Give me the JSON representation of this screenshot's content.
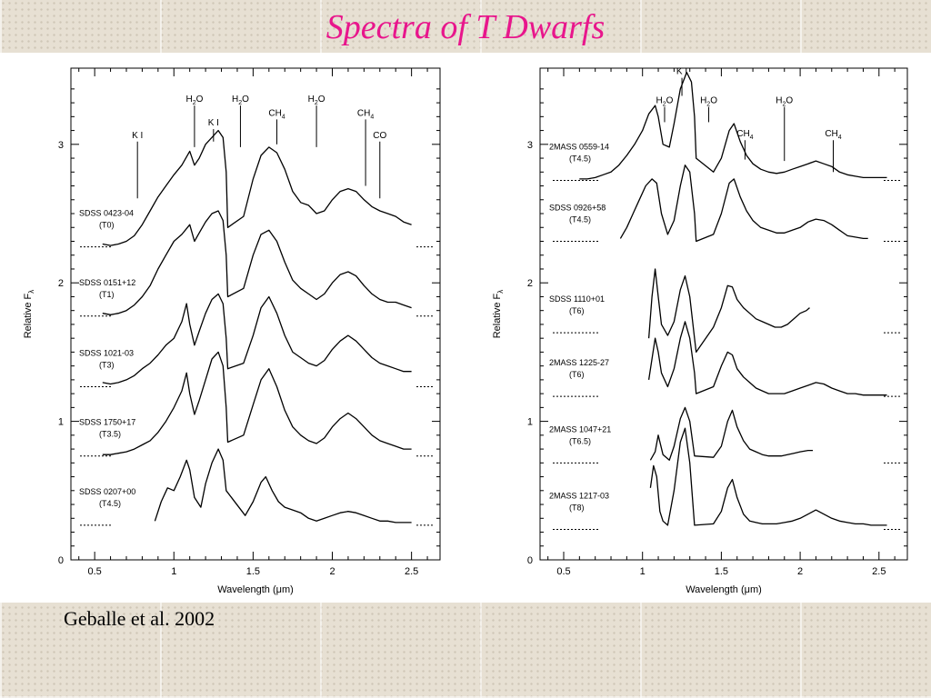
{
  "slide": {
    "title": "Spectra of T Dwarfs",
    "citation": "Geballe et al. 2002"
  },
  "chart_data": [
    {
      "type": "line",
      "xlabel": "Wavelength (μm)",
      "ylabel": "Relative F_λ",
      "xlim": [
        0.35,
        2.68
      ],
      "ylim": [
        0,
        3.55
      ],
      "xticks": [
        "0.5",
        "1",
        "1.5",
        "2",
        "2.5"
      ],
      "xtick_values": [
        0.5,
        1,
        1.5,
        2,
        2.5
      ],
      "yticks": [
        "0",
        "1",
        "2",
        "3"
      ],
      "ytick_values": [
        0,
        1,
        2,
        3
      ],
      "feature_labels": [
        {
          "text": "K I",
          "x": 0.77,
          "top": 3.02,
          "bottom": 2.61
        },
        {
          "text": "H2O",
          "x": 1.13,
          "top": 3.28,
          "bottom": 2.98
        },
        {
          "text": "K I",
          "x": 1.25,
          "top": 3.11,
          "bottom": 3.02
        },
        {
          "text": "H2O",
          "x": 1.42,
          "top": 3.28,
          "bottom": 2.98
        },
        {
          "text": "CH4",
          "x": 1.65,
          "top": 3.18,
          "bottom": 3.0
        },
        {
          "text": "H2O",
          "x": 1.9,
          "top": 3.28,
          "bottom": 2.98
        },
        {
          "text": "CH4",
          "x": 2.21,
          "top": 3.18,
          "bottom": 2.7
        },
        {
          "text": "CO",
          "x": 2.3,
          "top": 3.02,
          "bottom": 2.61
        }
      ],
      "series": [
        {
          "name": "SDSS 0423-04",
          "type": "(T0)",
          "zero": 2.26,
          "x": [
            0.55,
            0.6,
            0.65,
            0.7,
            0.75,
            0.8,
            0.85,
            0.9,
            0.95,
            1.0,
            1.05,
            1.1,
            1.13,
            1.16,
            1.2,
            1.24,
            1.28,
            1.31,
            1.33,
            1.34,
            1.44,
            1.5,
            1.55,
            1.6,
            1.65,
            1.7,
            1.75,
            1.8,
            1.85,
            1.9,
            1.95,
            2.0,
            2.05,
            2.1,
            2.15,
            2.2,
            2.25,
            2.3,
            2.35,
            2.4,
            2.45,
            2.5
          ],
          "y": [
            2.28,
            2.27,
            2.28,
            2.3,
            2.34,
            2.42,
            2.52,
            2.62,
            2.7,
            2.78,
            2.85,
            2.95,
            2.85,
            2.9,
            3.0,
            3.05,
            3.1,
            3.05,
            2.8,
            2.4,
            2.48,
            2.75,
            2.92,
            2.98,
            2.94,
            2.82,
            2.66,
            2.58,
            2.56,
            2.5,
            2.52,
            2.6,
            2.66,
            2.68,
            2.66,
            2.6,
            2.55,
            2.52,
            2.5,
            2.48,
            2.44,
            2.42
          ]
        },
        {
          "name": "SDSS 0151+12",
          "type": "(T1)",
          "zero": 1.76,
          "x": [
            0.55,
            0.6,
            0.65,
            0.7,
            0.75,
            0.8,
            0.85,
            0.9,
            0.95,
            1.0,
            1.05,
            1.1,
            1.13,
            1.16,
            1.2,
            1.24,
            1.28,
            1.31,
            1.33,
            1.34,
            1.44,
            1.5,
            1.55,
            1.6,
            1.65,
            1.7,
            1.75,
            1.8,
            1.85,
            1.9,
            1.95,
            2.0,
            2.05,
            2.1,
            2.15,
            2.2,
            2.25,
            2.3,
            2.35,
            2.4,
            2.45,
            2.5
          ],
          "y": [
            1.78,
            1.77,
            1.78,
            1.8,
            1.84,
            1.9,
            1.98,
            2.1,
            2.2,
            2.3,
            2.35,
            2.42,
            2.3,
            2.36,
            2.44,
            2.5,
            2.52,
            2.45,
            2.2,
            1.9,
            1.96,
            2.2,
            2.35,
            2.38,
            2.3,
            2.15,
            2.02,
            1.96,
            1.92,
            1.88,
            1.92,
            2.0,
            2.06,
            2.08,
            2.05,
            1.98,
            1.92,
            1.88,
            1.86,
            1.86,
            1.84,
            1.82
          ]
        },
        {
          "name": "SDSS 1021-03",
          "type": "(T3)",
          "zero": 1.25,
          "x": [
            0.55,
            0.6,
            0.65,
            0.7,
            0.75,
            0.8,
            0.85,
            0.9,
            0.95,
            1.0,
            1.05,
            1.08,
            1.1,
            1.13,
            1.16,
            1.2,
            1.24,
            1.28,
            1.31,
            1.33,
            1.34,
            1.44,
            1.5,
            1.55,
            1.6,
            1.65,
            1.7,
            1.75,
            1.8,
            1.85,
            1.9,
            1.95,
            2.0,
            2.05,
            2.1,
            2.15,
            2.2,
            2.25,
            2.3,
            2.35,
            2.4,
            2.45,
            2.5
          ],
          "y": [
            1.28,
            1.27,
            1.28,
            1.3,
            1.33,
            1.38,
            1.42,
            1.48,
            1.55,
            1.6,
            1.72,
            1.85,
            1.7,
            1.55,
            1.65,
            1.78,
            1.88,
            1.92,
            1.85,
            1.6,
            1.38,
            1.42,
            1.62,
            1.82,
            1.9,
            1.78,
            1.62,
            1.5,
            1.46,
            1.42,
            1.4,
            1.44,
            1.52,
            1.58,
            1.62,
            1.58,
            1.52,
            1.46,
            1.42,
            1.4,
            1.38,
            1.36,
            1.36
          ]
        },
        {
          "name": "SDSS 1750+17",
          "type": "(T3.5)",
          "zero": 0.75,
          "x": [
            0.55,
            0.6,
            0.65,
            0.7,
            0.75,
            0.8,
            0.85,
            0.9,
            0.95,
            1.0,
            1.05,
            1.08,
            1.1,
            1.13,
            1.16,
            1.2,
            1.24,
            1.28,
            1.31,
            1.33,
            1.34,
            1.44,
            1.5,
            1.55,
            1.6,
            1.65,
            1.7,
            1.75,
            1.8,
            1.85,
            1.9,
            1.95,
            2.0,
            2.05,
            2.1,
            2.15,
            2.2,
            2.25,
            2.3,
            2.35,
            2.4,
            2.45,
            2.5
          ],
          "y": [
            0.76,
            0.76,
            0.77,
            0.78,
            0.8,
            0.83,
            0.86,
            0.92,
            1.0,
            1.1,
            1.22,
            1.35,
            1.2,
            1.05,
            1.15,
            1.3,
            1.45,
            1.5,
            1.4,
            1.1,
            0.85,
            0.9,
            1.12,
            1.3,
            1.38,
            1.25,
            1.08,
            0.96,
            0.9,
            0.86,
            0.84,
            0.88,
            0.96,
            1.02,
            1.06,
            1.02,
            0.96,
            0.9,
            0.86,
            0.84,
            0.82,
            0.8,
            0.8
          ]
        },
        {
          "name": "SDSS 0207+00",
          "type": "(T4.5)",
          "zero": 0.25,
          "x": [
            0.88,
            0.92,
            0.96,
            1.0,
            1.04,
            1.08,
            1.1,
            1.13,
            1.17,
            1.2,
            1.24,
            1.28,
            1.31,
            1.33,
            1.45,
            1.5,
            1.55,
            1.58,
            1.62,
            1.66,
            1.7,
            1.75,
            1.8,
            1.85,
            1.9,
            1.95,
            2.0,
            2.05,
            2.1,
            2.15,
            2.2,
            2.25,
            2.3,
            2.35,
            2.4,
            2.45,
            2.5
          ],
          "y": [
            0.28,
            0.42,
            0.52,
            0.5,
            0.6,
            0.72,
            0.65,
            0.45,
            0.38,
            0.55,
            0.7,
            0.8,
            0.72,
            0.5,
            0.32,
            0.42,
            0.56,
            0.6,
            0.5,
            0.42,
            0.38,
            0.36,
            0.34,
            0.3,
            0.28,
            0.3,
            0.32,
            0.34,
            0.35,
            0.34,
            0.32,
            0.3,
            0.28,
            0.28,
            0.27,
            0.27,
            0.27
          ]
        }
      ]
    },
    {
      "type": "line",
      "xlabel": "Wavelength (μm)",
      "ylabel": "Relative F_λ",
      "xlim": [
        0.35,
        2.68
      ],
      "ylim": [
        0,
        3.55
      ],
      "xticks": [
        "0.5",
        "1",
        "1.5",
        "2",
        "2.5"
      ],
      "xtick_values": [
        0.5,
        1,
        1.5,
        2,
        2.5
      ],
      "yticks": [
        "0",
        "1",
        "2",
        "3"
      ],
      "ytick_values": [
        0,
        1,
        2,
        3
      ],
      "feature_labels": [
        {
          "text": "H2O",
          "x": 1.14,
          "top": 3.27,
          "bottom": 3.16
        },
        {
          "text": "K I",
          "x": 1.25,
          "top": 3.48,
          "bottom": 3.35
        },
        {
          "text": "H2O",
          "x": 1.42,
          "top": 3.27,
          "bottom": 3.16
        },
        {
          "text": "CH4",
          "x": 1.65,
          "top": 3.03,
          "bottom": 2.89
        },
        {
          "text": "H2O",
          "x": 1.9,
          "top": 3.27,
          "bottom": 2.88
        },
        {
          "text": "CH4",
          "x": 2.21,
          "top": 3.03,
          "bottom": 2.8
        }
      ],
      "series": [
        {
          "name": "2MASS 0559-14",
          "type": "(T4.5)",
          "zero": 2.74,
          "x": [
            0.6,
            0.65,
            0.7,
            0.75,
            0.8,
            0.85,
            0.9,
            0.95,
            1.0,
            1.04,
            1.08,
            1.1,
            1.13,
            1.17,
            1.2,
            1.24,
            1.28,
            1.31,
            1.33,
            1.34,
            1.45,
            1.5,
            1.55,
            1.58,
            1.62,
            1.66,
            1.7,
            1.75,
            1.8,
            1.85,
            1.9,
            1.95,
            2.0,
            2.05,
            2.1,
            2.15,
            2.2,
            2.25,
            2.3,
            2.35,
            2.4,
            2.45,
            2.5,
            2.55
          ],
          "y": [
            2.75,
            2.75,
            2.76,
            2.78,
            2.8,
            2.85,
            2.92,
            3.0,
            3.1,
            3.22,
            3.28,
            3.2,
            3.0,
            2.98,
            3.15,
            3.4,
            3.52,
            3.45,
            3.2,
            2.9,
            2.8,
            2.9,
            3.1,
            3.15,
            3.02,
            2.92,
            2.86,
            2.82,
            2.8,
            2.79,
            2.8,
            2.82,
            2.84,
            2.86,
            2.88,
            2.86,
            2.84,
            2.8,
            2.78,
            2.77,
            2.76,
            2.76,
            2.76,
            2.76
          ]
        },
        {
          "name": "SDSS 0926+58",
          "type": "(T4.5)",
          "zero": 2.3,
          "x": [
            0.86,
            0.9,
            0.94,
            0.98,
            1.02,
            1.06,
            1.09,
            1.12,
            1.16,
            1.2,
            1.24,
            1.27,
            1.3,
            1.33,
            1.34,
            1.45,
            1.5,
            1.55,
            1.58,
            1.62,
            1.66,
            1.7,
            1.75,
            1.8,
            1.85,
            1.9,
            1.95,
            2.0,
            2.05,
            2.1,
            2.15,
            2.2,
            2.25,
            2.3,
            2.35,
            2.4,
            2.43
          ],
          "y": [
            2.32,
            2.4,
            2.5,
            2.6,
            2.7,
            2.75,
            2.72,
            2.5,
            2.35,
            2.45,
            2.7,
            2.85,
            2.8,
            2.5,
            2.3,
            2.35,
            2.5,
            2.72,
            2.75,
            2.62,
            2.52,
            2.45,
            2.4,
            2.38,
            2.36,
            2.36,
            2.38,
            2.4,
            2.44,
            2.46,
            2.45,
            2.42,
            2.38,
            2.34,
            2.33,
            2.32,
            2.32
          ]
        },
        {
          "name": "SDSS 1110+01",
          "type": "(T6)",
          "zero": 1.64,
          "x": [
            1.04,
            1.06,
            1.08,
            1.1,
            1.12,
            1.16,
            1.2,
            1.24,
            1.27,
            1.3,
            1.33,
            1.34,
            1.45,
            1.5,
            1.54,
            1.57,
            1.6,
            1.64,
            1.68,
            1.72,
            1.76,
            1.8,
            1.84,
            1.88,
            1.92,
            1.96,
            2.0,
            2.04,
            2.06
          ],
          "y": [
            1.6,
            1.9,
            2.1,
            1.9,
            1.7,
            1.62,
            1.72,
            1.95,
            2.05,
            1.9,
            1.6,
            1.5,
            1.68,
            1.82,
            1.98,
            1.97,
            1.88,
            1.82,
            1.78,
            1.74,
            1.72,
            1.7,
            1.68,
            1.68,
            1.7,
            1.74,
            1.78,
            1.8,
            1.82
          ]
        },
        {
          "name": "2MASS 1225-27",
          "type": "(T6)",
          "zero": 1.18,
          "x": [
            1.04,
            1.06,
            1.08,
            1.1,
            1.12,
            1.16,
            1.2,
            1.24,
            1.27,
            1.3,
            1.33,
            1.34,
            1.45,
            1.5,
            1.54,
            1.57,
            1.6,
            1.64,
            1.68,
            1.72,
            1.76,
            1.8,
            1.85,
            1.9,
            1.95,
            2.0,
            2.05,
            2.1,
            2.15,
            2.2,
            2.25,
            2.3,
            2.35,
            2.4,
            2.45,
            2.5,
            2.55
          ],
          "y": [
            1.3,
            1.45,
            1.6,
            1.5,
            1.35,
            1.25,
            1.38,
            1.6,
            1.72,
            1.6,
            1.35,
            1.2,
            1.25,
            1.4,
            1.5,
            1.48,
            1.38,
            1.32,
            1.28,
            1.24,
            1.22,
            1.2,
            1.2,
            1.2,
            1.22,
            1.24,
            1.26,
            1.28,
            1.27,
            1.24,
            1.22,
            1.2,
            1.2,
            1.19,
            1.19,
            1.19,
            1.19
          ]
        },
        {
          "name": "2MASS 1047+21",
          "type": "(T6.5)",
          "zero": 0.7,
          "x": [
            1.05,
            1.08,
            1.1,
            1.13,
            1.17,
            1.2,
            1.24,
            1.27,
            1.3,
            1.33,
            1.45,
            1.5,
            1.54,
            1.57,
            1.6,
            1.64,
            1.68,
            1.72,
            1.76,
            1.8,
            1.84,
            1.88,
            1.92,
            1.96,
            2.0,
            2.05,
            2.08
          ],
          "y": [
            0.72,
            0.78,
            0.9,
            0.76,
            0.72,
            0.82,
            1.02,
            1.1,
            1.0,
            0.75,
            0.74,
            0.82,
            1.0,
            1.08,
            0.96,
            0.86,
            0.8,
            0.78,
            0.76,
            0.75,
            0.75,
            0.75,
            0.76,
            0.77,
            0.78,
            0.79,
            0.79
          ]
        },
        {
          "name": "2MASS 1217-03",
          "type": "(T8)",
          "zero": 0.22,
          "x": [
            1.05,
            1.07,
            1.09,
            1.11,
            1.13,
            1.16,
            1.2,
            1.24,
            1.27,
            1.3,
            1.33,
            1.45,
            1.5,
            1.54,
            1.57,
            1.6,
            1.64,
            1.68,
            1.72,
            1.76,
            1.8,
            1.85,
            1.9,
            1.95,
            2.0,
            2.05,
            2.1,
            2.15,
            2.2,
            2.25,
            2.3,
            2.35,
            2.4,
            2.45,
            2.5,
            2.55
          ],
          "y": [
            0.52,
            0.68,
            0.6,
            0.35,
            0.28,
            0.25,
            0.5,
            0.85,
            0.95,
            0.7,
            0.25,
            0.26,
            0.35,
            0.52,
            0.58,
            0.45,
            0.33,
            0.28,
            0.27,
            0.26,
            0.26,
            0.26,
            0.27,
            0.28,
            0.3,
            0.33,
            0.36,
            0.33,
            0.3,
            0.28,
            0.27,
            0.26,
            0.26,
            0.25,
            0.25,
            0.25
          ]
        }
      ]
    }
  ]
}
